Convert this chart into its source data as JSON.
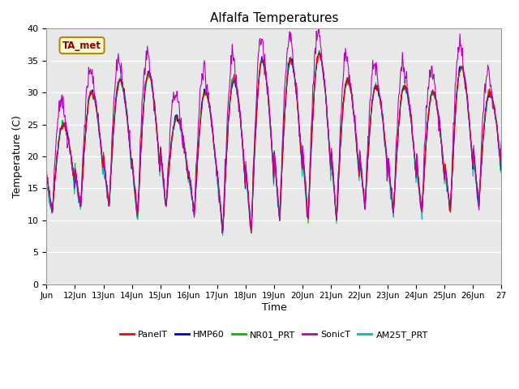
{
  "title": "Alfalfa Temperatures",
  "ylabel": "Temperature (C)",
  "xlabel": "Time",
  "annotation_text": "TA_met",
  "annotation_color": "#8B0000",
  "annotation_bg": "#FFFACD",
  "annotation_border": "#B8860B",
  "xlim_start": 11,
  "xlim_end": 27,
  "ylim_min": 0,
  "ylim_max": 40,
  "yticks": [
    0,
    5,
    10,
    15,
    20,
    25,
    30,
    35,
    40
  ],
  "xtick_labels": [
    "Jun",
    "12Jun",
    "13Jun",
    "14Jun",
    "15Jun",
    "16Jun",
    "17Jun",
    "18Jun",
    "19Jun",
    "20Jun",
    "21Jun",
    "22Jun",
    "23Jun",
    "24Jun",
    "25Jun",
    "26Jun",
    "27"
  ],
  "xtick_positions": [
    11,
    12,
    13,
    14,
    15,
    16,
    17,
    18,
    19,
    20,
    21,
    22,
    23,
    24,
    25,
    26,
    27
  ],
  "bg_color": "#E8E8E8",
  "fig_color": "#FFFFFF",
  "grid_color": "#FFFFFF",
  "series": {
    "PanelT": {
      "color": "#FF0000",
      "lw": 0.8
    },
    "HMP60": {
      "color": "#0000CD",
      "lw": 0.8
    },
    "NR01_PRT": {
      "color": "#00BB00",
      "lw": 0.8
    },
    "SonicT": {
      "color": "#BB00BB",
      "lw": 0.8
    },
    "AM25T_PRT": {
      "color": "#00BBBB",
      "lw": 0.8
    }
  },
  "legend_entries": [
    "PanelT",
    "HMP60",
    "NR01_PRT",
    "SonicT",
    "AM25T_PRT"
  ],
  "legend_colors": [
    "#FF0000",
    "#0000CD",
    "#00BB00",
    "#BB00BB",
    "#00BBBB"
  ],
  "day_peaks": [
    25,
    30,
    32,
    33,
    26,
    30,
    32,
    35,
    35,
    36,
    32,
    31,
    31,
    30,
    34,
    30
  ],
  "day_lows": [
    11,
    12,
    12,
    10,
    12,
    11,
    8,
    8,
    10,
    10,
    10,
    12,
    11,
    11,
    11,
    12
  ]
}
